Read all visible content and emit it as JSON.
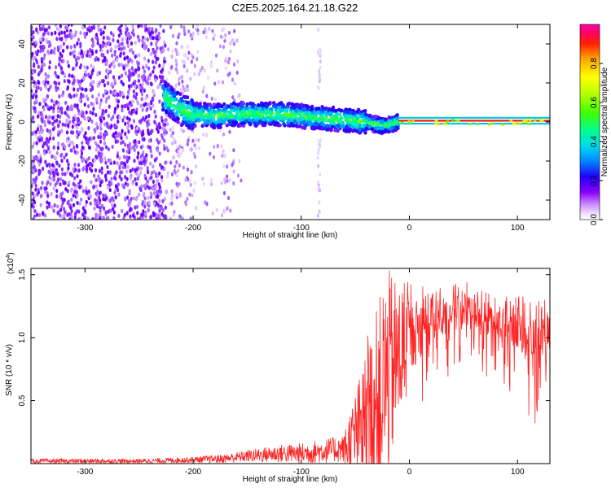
{
  "title": "C2E5.2025.164.21.18.G22",
  "chart_data": [
    {
      "type": "heatmap",
      "title": "",
      "xlabel": "Height of straight line (km)",
      "ylabel": "Frequency (Hz)",
      "xlim": [
        -350,
        130
      ],
      "ylim": [
        -50,
        50
      ],
      "x_ticks": [
        -300,
        -200,
        -100,
        0,
        100
      ],
      "x_tick_labels": [
        "-300",
        "-200",
        "-100",
        "0",
        "100"
      ],
      "y_ticks": [
        -40,
        -20,
        0,
        20,
        40
      ],
      "y_tick_labels": [
        "-40",
        "-20",
        "0",
        "20",
        "40"
      ],
      "grid": false,
      "colorbar": {
        "label": "Normalized spectral amplitude",
        "range": [
          0,
          1
        ],
        "ticks": [
          0.0,
          0.2,
          0.4,
          0.6,
          0.8
        ],
        "tick_labels": [
          "0.0",
          "0.2",
          "0.4",
          "0.6",
          "0.8"
        ],
        "colormap": [
          "#ffffff",
          "#e6ccff",
          "#9933ff",
          "#3300ff",
          "#0044ff",
          "#00ccff",
          "#00ff66",
          "#66ff00",
          "#ffff00",
          "#ff8800",
          "#ff0000",
          "#ff00aa"
        ]
      },
      "features": [
        {
          "region": "noise",
          "x_range": [
            -350,
            -155
          ],
          "freq_range": [
            -50,
            50
          ],
          "amplitude": 0.15
        },
        {
          "region": "signal_band",
          "points": [
            [
              -225,
              12
            ],
            [
              -210,
              6
            ],
            [
              -200,
              4
            ],
            [
              -180,
              3
            ],
            [
              -160,
              4
            ],
            [
              -140,
              4
            ],
            [
              -120,
              4
            ],
            [
              -100,
              3
            ],
            [
              -80,
              2
            ],
            [
              -60,
              1
            ],
            [
              -40,
              0
            ],
            [
              -25,
              -2
            ],
            [
              -10,
              0
            ],
            [
              0,
              1
            ],
            [
              10,
              0
            ],
            [
              130,
              0
            ]
          ]
        },
        {
          "region": "dc_line",
          "x_range": [
            -10,
            130
          ],
          "freq": 0,
          "amplitude": 0.9
        }
      ]
    },
    {
      "type": "line",
      "title": "",
      "xlabel": "Height of straight line (km)",
      "ylabel": "SNR (10 * v/v)",
      "y_scale_label": "(x10",
      "y_scale_exponent": "4",
      "xlim": [
        -350,
        130
      ],
      "ylim": [
        0,
        1.55
      ],
      "x_ticks": [
        -300,
        -200,
        -100,
        0,
        100
      ],
      "x_tick_labels": [
        "-300",
        "-200",
        "-100",
        "0",
        "100"
      ],
      "y_ticks": [
        0.5,
        1.0,
        1.5
      ],
      "y_tick_labels": [
        "0.5",
        "1.0",
        "1.5"
      ],
      "grid": false,
      "color": "#ff2222",
      "envelope": {
        "x": [
          -350,
          -300,
          -250,
          -200,
          -170,
          -150,
          -120,
          -100,
          -80,
          -60,
          -50,
          -40,
          -30,
          -20,
          -10,
          0,
          20,
          40,
          60,
          80,
          100,
          110,
          120,
          130
        ],
        "base": [
          0.02,
          0.02,
          0.02,
          0.03,
          0.04,
          0.06,
          0.08,
          0.08,
          0.1,
          0.12,
          0.22,
          0.35,
          0.5,
          0.7,
          0.85,
          1.0,
          1.15,
          1.25,
          1.22,
          1.15,
          1.12,
          1.1,
          1.1,
          1.08
        ],
        "spread": [
          0.03,
          0.03,
          0.03,
          0.04,
          0.06,
          0.08,
          0.12,
          0.14,
          0.16,
          0.18,
          0.35,
          0.55,
          0.75,
          0.85,
          0.6,
          0.45,
          0.4,
          0.3,
          0.3,
          0.3,
          0.35,
          0.45,
          0.45,
          0.35
        ]
      }
    }
  ]
}
